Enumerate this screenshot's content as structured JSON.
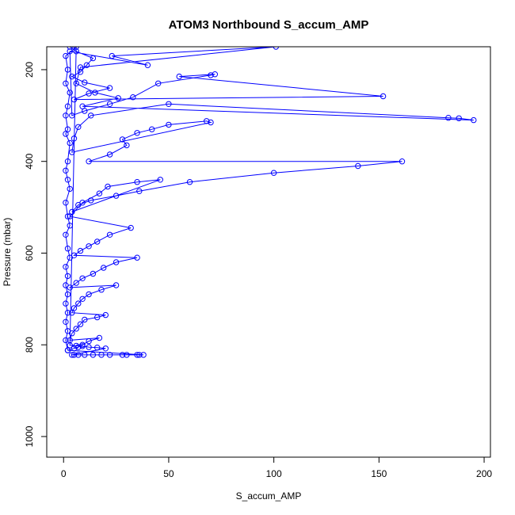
{
  "chart_data": {
    "type": "line",
    "title": "ATOM3 Northbound S_accum_AMP",
    "xlabel": "S_accum_AMP",
    "ylabel": "Pressure (mbar)",
    "xlim": [
      -8,
      203
    ],
    "ylim": [
      1045,
      150
    ],
    "y_reversed": true,
    "x_ticks": [
      0,
      50,
      100,
      150,
      200
    ],
    "y_ticks": [
      200,
      400,
      600,
      800,
      1000
    ],
    "x_tick_labels": [
      "0",
      "50",
      "100",
      "150",
      "200"
    ],
    "y_tick_labels": [
      "200",
      "400",
      "600",
      "800",
      "1000"
    ],
    "grid": false,
    "legend": "none",
    "marker": "open-circle",
    "series": [
      {
        "color": "#0000ff",
        "points": [
          [
            3,
            150
          ],
          [
            6,
            160
          ],
          [
            14,
            175
          ],
          [
            11,
            190
          ],
          [
            8,
            205
          ],
          [
            4,
            215
          ],
          [
            10,
            228
          ],
          [
            22,
            240
          ],
          [
            12,
            252
          ],
          [
            5,
            265
          ],
          [
            152,
            258
          ],
          [
            55,
            215
          ],
          [
            72,
            210
          ],
          [
            70,
            212
          ],
          [
            45,
            230
          ],
          [
            33,
            260
          ],
          [
            22,
            275
          ],
          [
            10,
            290
          ],
          [
            4,
            300
          ],
          [
            3,
            160
          ],
          [
            40,
            190
          ],
          [
            23,
            170
          ],
          [
            101,
            150
          ],
          [
            8,
            195
          ],
          [
            6,
            230
          ],
          [
            15,
            250
          ],
          [
            26,
            262
          ],
          [
            9,
            280
          ],
          [
            195,
            310
          ],
          [
            188,
            306
          ],
          [
            183,
            305
          ],
          [
            50,
            275
          ],
          [
            13,
            300
          ],
          [
            7,
            325
          ],
          [
            5,
            350
          ],
          [
            4,
            380
          ],
          [
            70,
            315
          ],
          [
            68,
            312
          ],
          [
            50,
            320
          ],
          [
            42,
            330
          ],
          [
            35,
            338
          ],
          [
            28,
            352
          ],
          [
            30,
            365
          ],
          [
            22,
            385
          ],
          [
            12,
            400
          ],
          [
            161,
            400
          ],
          [
            140,
            410
          ],
          [
            100,
            425
          ],
          [
            60,
            445
          ],
          [
            36,
            465
          ],
          [
            25,
            475
          ],
          [
            13,
            485
          ],
          [
            7,
            495
          ],
          [
            4,
            510
          ],
          [
            46,
            440
          ],
          [
            35,
            445
          ],
          [
            21,
            455
          ],
          [
            17,
            470
          ],
          [
            9,
            490
          ],
          [
            3,
            520
          ],
          [
            32,
            545
          ],
          [
            22,
            560
          ],
          [
            16,
            575
          ],
          [
            12,
            585
          ],
          [
            8,
            595
          ],
          [
            5,
            605
          ],
          [
            35,
            610
          ],
          [
            25,
            620
          ],
          [
            19,
            632
          ],
          [
            14,
            645
          ],
          [
            9,
            655
          ],
          [
            6,
            665
          ],
          [
            3,
            675
          ],
          [
            25,
            670
          ],
          [
            18,
            680
          ],
          [
            12,
            690
          ],
          [
            9,
            700
          ],
          [
            7,
            710
          ],
          [
            5,
            720
          ],
          [
            4,
            730
          ],
          [
            20,
            735
          ],
          [
            16,
            740
          ],
          [
            10,
            745
          ],
          [
            8,
            755
          ],
          [
            6,
            765
          ],
          [
            4,
            775
          ],
          [
            3,
            790
          ],
          [
            17,
            785
          ],
          [
            12,
            792
          ],
          [
            9,
            800
          ],
          [
            7,
            805
          ],
          [
            5,
            808
          ],
          [
            2,
            812
          ],
          [
            38,
            822
          ],
          [
            36,
            822
          ],
          [
            35,
            822
          ],
          [
            30,
            822
          ],
          [
            28,
            822
          ],
          [
            22,
            822
          ],
          [
            18,
            822
          ],
          [
            14,
            822
          ],
          [
            10,
            822
          ],
          [
            7,
            822
          ],
          [
            5,
            822
          ],
          [
            4,
            822
          ],
          [
            20,
            808
          ],
          [
            16,
            806
          ],
          [
            12,
            805
          ],
          [
            9,
            803
          ],
          [
            6,
            802
          ],
          [
            3,
            801
          ],
          [
            6,
            150
          ],
          [
            1,
            170
          ],
          [
            2,
            200
          ],
          [
            1,
            230
          ],
          [
            3,
            250
          ],
          [
            2,
            280
          ],
          [
            1,
            300
          ],
          [
            2,
            330
          ],
          [
            1,
            340
          ],
          [
            3,
            360
          ],
          [
            2,
            400
          ],
          [
            1,
            420
          ],
          [
            2,
            440
          ],
          [
            3,
            460
          ],
          [
            1,
            490
          ],
          [
            2,
            520
          ],
          [
            3,
            540
          ],
          [
            1,
            560
          ],
          [
            2,
            590
          ],
          [
            3,
            610
          ],
          [
            1,
            630
          ],
          [
            2,
            650
          ],
          [
            1,
            670
          ],
          [
            2,
            690
          ],
          [
            1,
            710
          ],
          [
            2,
            730
          ],
          [
            1,
            750
          ],
          [
            2,
            770
          ],
          [
            1,
            790
          ],
          [
            2,
            812
          ]
        ]
      }
    ]
  }
}
